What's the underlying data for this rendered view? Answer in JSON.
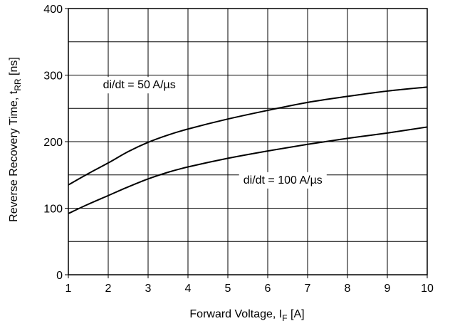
{
  "chart_data": {
    "type": "line",
    "xlabel": {
      "main": "Forward Voltage, I",
      "sub": "F",
      "suffix": " [A]"
    },
    "ylabel": {
      "main": "Reverse Recovery Time, t",
      "sub": "RR",
      "suffix": " [ns]"
    },
    "xlim": [
      1,
      10
    ],
    "ylim": [
      0,
      400
    ],
    "x_ticks": [
      1,
      2,
      3,
      4,
      5,
      6,
      7,
      8,
      9,
      10
    ],
    "y_ticks": [
      0,
      100,
      200,
      300,
      400
    ],
    "x_grid_step": 1,
    "y_grid_step": 50,
    "grid": true,
    "series": [
      {
        "name": "di/dt = 50 A/µs",
        "x": [
          1,
          1.5,
          2,
          2.5,
          3,
          3.5,
          4,
          5,
          6,
          7,
          8,
          9,
          10
        ],
        "y": [
          135,
          152,
          168,
          185,
          199,
          210,
          219,
          234,
          247,
          259,
          268,
          276,
          282
        ]
      },
      {
        "name": "di/dt = 100 A/µs",
        "x": [
          1,
          1.5,
          2,
          2.5,
          3,
          3.5,
          4,
          5,
          6,
          7,
          8,
          9,
          10
        ],
        "y": [
          92,
          106,
          119,
          132,
          144,
          154,
          162,
          175,
          186,
          196,
          205,
          213,
          222
        ]
      }
    ],
    "annotations": [
      {
        "text": "di/dt = 50 A/µs",
        "x": 2.78,
        "y": 280
      },
      {
        "text": "di/dt = 100 A/µs",
        "x": 6.38,
        "y": 137
      }
    ]
  }
}
